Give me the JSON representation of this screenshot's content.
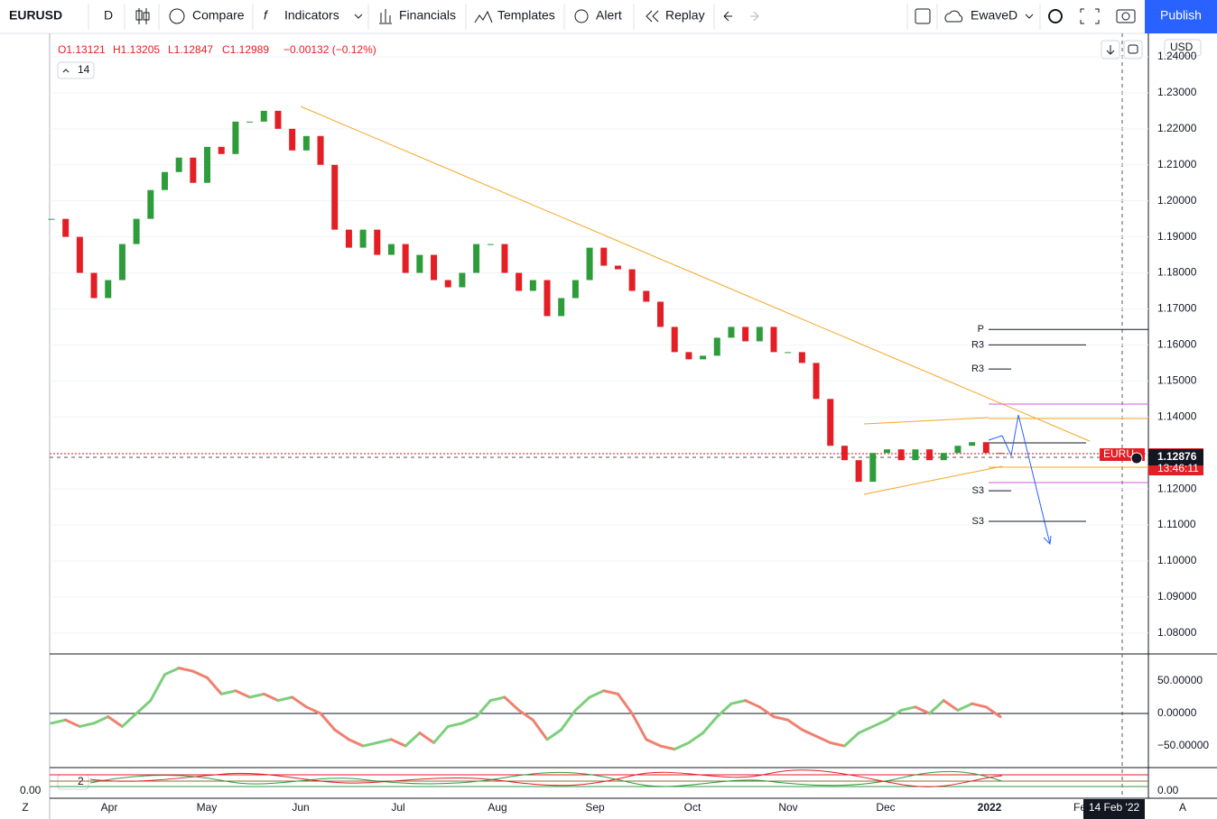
{
  "toolbar": {
    "symbol": "EURUSD",
    "interval": "D",
    "compare": "Compare",
    "indicators": "Indicators",
    "financials": "Financials",
    "templates": "Templates",
    "alert": "Alert",
    "replay": "Replay",
    "layout": "EwaveD",
    "publish": "Publish"
  },
  "legend": {
    "open": "O1.13121",
    "high": "H1.13205",
    "low": "L1.12847",
    "close": "C1.12989",
    "change": "−0.00132 (−0.12%)",
    "length": "14"
  },
  "chart_data": [
    {
      "type": "candlestick",
      "up_color": "#2e9c3b",
      "down_color": "#e31e24",
      "values": [
        1.195,
        1.19,
        1.18,
        1.173,
        1.178,
        1.188,
        1.195,
        1.203,
        1.208,
        1.212,
        1.205,
        1.215,
        1.213,
        1.222,
        1.222,
        1.225,
        1.22,
        1.214,
        1.218,
        1.21,
        1.192,
        1.187,
        1.192,
        1.185,
        1.188,
        1.18,
        1.185,
        1.178,
        1.176,
        1.18,
        1.188,
        1.188,
        1.18,
        1.175,
        1.178,
        1.168,
        1.173,
        1.178,
        1.187,
        1.182,
        1.181,
        1.175,
        1.172,
        1.165,
        1.158,
        1.156,
        1.157,
        1.162,
        1.165,
        1.161,
        1.165,
        1.158,
        1.158,
        1.155,
        1.145,
        1.132,
        1.128,
        1.122,
        1.13,
        1.131,
        1.128,
        1.131,
        1.128,
        1.13,
        1.132,
        1.133,
        1.13,
        1.1299
      ],
      "ylim": [
        1.0742,
        1.2465
      ],
      "yticks": [
        {
          "value": 1.24,
          "label": "1.24000"
        },
        {
          "value": 1.23,
          "label": "1.23000"
        },
        {
          "value": 1.22,
          "label": "1.22000"
        },
        {
          "value": 1.21,
          "label": "1.21000"
        },
        {
          "value": 1.2,
          "label": "1.20000"
        },
        {
          "value": 1.19,
          "label": "1.19000"
        },
        {
          "value": 1.18,
          "label": "1.18000"
        },
        {
          "value": 1.17,
          "label": "1.17000"
        },
        {
          "value": 1.16,
          "label": "1.16000"
        },
        {
          "value": 1.15,
          "label": "1.15000"
        },
        {
          "value": 1.14,
          "label": "1.14000"
        },
        {
          "value": 1.13,
          "label": "1.13000"
        },
        {
          "value": 1.12,
          "label": "1.12000"
        },
        {
          "value": 1.11,
          "label": "1.11000"
        },
        {
          "value": 1.1,
          "label": "1.10000"
        },
        {
          "value": 1.09,
          "label": "1.09000"
        },
        {
          "value": 1.08,
          "label": "1.08000"
        }
      ],
      "grid": true
    },
    {
      "type": "line",
      "up_color": "#7ccf7c",
      "down_color": "#f08070",
      "values": [
        -15,
        -10,
        -20,
        -15,
        -5,
        -20,
        0,
        20,
        60,
        70,
        65,
        55,
        30,
        35,
        25,
        30,
        20,
        25,
        10,
        0,
        -25,
        -40,
        -50,
        -45,
        -40,
        -50,
        -30,
        -45,
        -20,
        -15,
        -5,
        20,
        25,
        5,
        -10,
        -40,
        -25,
        5,
        25,
        35,
        30,
        0,
        -40,
        -50,
        -55,
        -45,
        -30,
        -5,
        15,
        20,
        10,
        -5,
        -10,
        -25,
        -35,
        -45,
        -50,
        -30,
        -20,
        -10,
        5,
        10,
        0,
        20,
        5,
        15,
        10,
        -5
      ],
      "ylim": [
        -81.9,
        90.3
      ],
      "yticks": [
        {
          "value": 50,
          "label": "50.00000"
        },
        {
          "value": 0,
          "label": "0.00000"
        },
        {
          "value": -50,
          "label": "−50.00000"
        }
      ]
    }
  ],
  "pivots": [
    {
      "label": "P",
      "value": 1.1643
    },
    {
      "label": "R3",
      "value": 1.16
    },
    {
      "label": "R3",
      "value": 1.1533
    },
    {
      "label": "S3",
      "value": 1.1195
    },
    {
      "label": "S3",
      "value": 1.111
    }
  ],
  "price_tags": {
    "symbol": "EURU",
    "price": "1.12876",
    "timer": "13:46:11",
    "currency": "USD"
  },
  "time_axis": {
    "months": [
      "Apr",
      "May",
      "Jun",
      "Jul",
      "Aug",
      "Sep",
      "Oct",
      "Nov",
      "Dec",
      "2022",
      "Fe"
    ],
    "cursor": "14 Feb '22"
  },
  "sub_pane": {
    "length": "2",
    "value": "0.00"
  },
  "corners": [
    "Z",
    "A"
  ]
}
